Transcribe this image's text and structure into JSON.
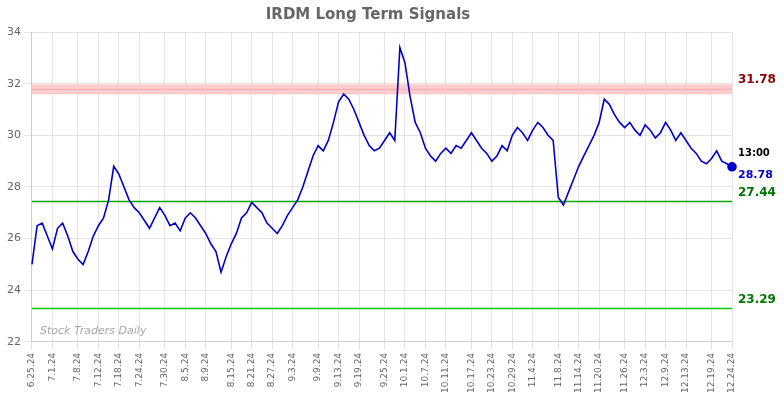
{
  "chart_data": {
    "type": "line",
    "title": "IRDM Long Term Signals",
    "categories": [
      "6.25.24",
      null,
      null,
      null,
      "7.1.24",
      null,
      null,
      null,
      null,
      "7.8.24",
      null,
      null,
      null,
      "7.12.24",
      null,
      null,
      null,
      "7.18.24",
      null,
      null,
      null,
      "7.24.24",
      null,
      null,
      null,
      null,
      "7.30.24",
      null,
      null,
      null,
      "8.5.24",
      null,
      null,
      null,
      "8.9.24",
      null,
      null,
      null,
      null,
      "8.15.24",
      null,
      null,
      null,
      "8.21.24",
      null,
      null,
      null,
      "8.27.24",
      null,
      null,
      null,
      "9.3.24",
      null,
      null,
      null,
      null,
      "9.9.24",
      null,
      null,
      null,
      "9.13.24",
      null,
      null,
      null,
      "9.19.24",
      null,
      null,
      null,
      null,
      "9.25.24",
      null,
      null,
      null,
      "10.1.24",
      null,
      null,
      null,
      "10.7.24",
      null,
      null,
      null,
      "10.11.24",
      null,
      null,
      null,
      null,
      "10.17.24",
      null,
      null,
      null,
      "10.23.24",
      null,
      null,
      null,
      "10.29.24",
      null,
      null,
      null,
      "11.4.24",
      null,
      null,
      null,
      null,
      "11.8.24",
      null,
      null,
      null,
      "11.14.24",
      null,
      null,
      null,
      "11.20.24",
      null,
      null,
      null,
      null,
      "11.26.24",
      null,
      null,
      null,
      "12.3.24",
      null,
      null,
      null,
      "12.9.24",
      null,
      null,
      null,
      "12.13.24",
      null,
      null,
      null,
      null,
      "12.19.24",
      null,
      null,
      null,
      "12.24.24"
    ],
    "values": [
      25.0,
      26.5,
      26.6,
      26.1,
      25.6,
      26.4,
      26.6,
      26.1,
      25.5,
      25.2,
      25.0,
      25.5,
      26.1,
      26.5,
      26.8,
      27.5,
      28.8,
      28.5,
      28.0,
      27.5,
      27.2,
      27.0,
      26.7,
      26.4,
      26.8,
      27.2,
      26.9,
      26.5,
      26.6,
      26.3,
      26.8,
      27.0,
      26.8,
      26.5,
      26.2,
      25.8,
      25.5,
      24.7,
      25.3,
      25.8,
      26.2,
      26.8,
      27.0,
      27.4,
      27.2,
      27.0,
      26.6,
      26.4,
      26.2,
      26.5,
      26.9,
      27.2,
      27.5,
      28.0,
      28.6,
      29.2,
      29.6,
      29.4,
      29.8,
      30.5,
      31.3,
      31.6,
      31.4,
      31.0,
      30.5,
      30.0,
      29.6,
      29.4,
      29.5,
      29.8,
      30.1,
      29.8,
      33.4,
      32.8,
      31.5,
      30.5,
      30.1,
      29.5,
      29.2,
      29.0,
      29.3,
      29.5,
      29.3,
      29.6,
      29.5,
      29.8,
      30.1,
      29.8,
      29.5,
      29.3,
      29.0,
      29.2,
      29.6,
      29.4,
      30.0,
      30.3,
      30.1,
      29.8,
      30.2,
      30.5,
      30.3,
      30.0,
      29.8,
      27.6,
      27.3,
      27.8,
      28.3,
      28.8,
      29.2,
      29.6,
      30.0,
      30.5,
      31.4,
      31.2,
      30.8,
      30.5,
      30.3,
      30.5,
      30.2,
      30.0,
      30.4,
      30.2,
      29.9,
      30.1,
      30.5,
      30.2,
      29.8,
      30.1,
      29.8,
      29.5,
      29.3,
      29.0,
      28.9,
      29.1,
      29.4,
      29.0,
      28.9,
      28.78
    ],
    "color": "#0000cc",
    "ylim": [
      22,
      34
    ],
    "yticks": [
      22,
      24,
      26,
      28,
      30,
      32,
      34
    ],
    "grid": true,
    "reference_lines": [
      {
        "value": 31.78,
        "label": "31.78",
        "color": "#ffaaaa",
        "band_color": "#ffcccc",
        "label_color": "#8b0000"
      },
      {
        "value": 27.44,
        "label": "27.44",
        "color": "#00aa00",
        "label_color": "#007700"
      },
      {
        "value": 23.29,
        "label": "23.29",
        "color": "#00cc00",
        "label_color": "#007700"
      }
    ],
    "annotations": [
      {
        "text": "13:00",
        "color": "#000000"
      },
      {
        "text": "28.78",
        "value": 28.78,
        "color": "#0000cc"
      }
    ],
    "watermark": "Stock Traders Daily"
  }
}
